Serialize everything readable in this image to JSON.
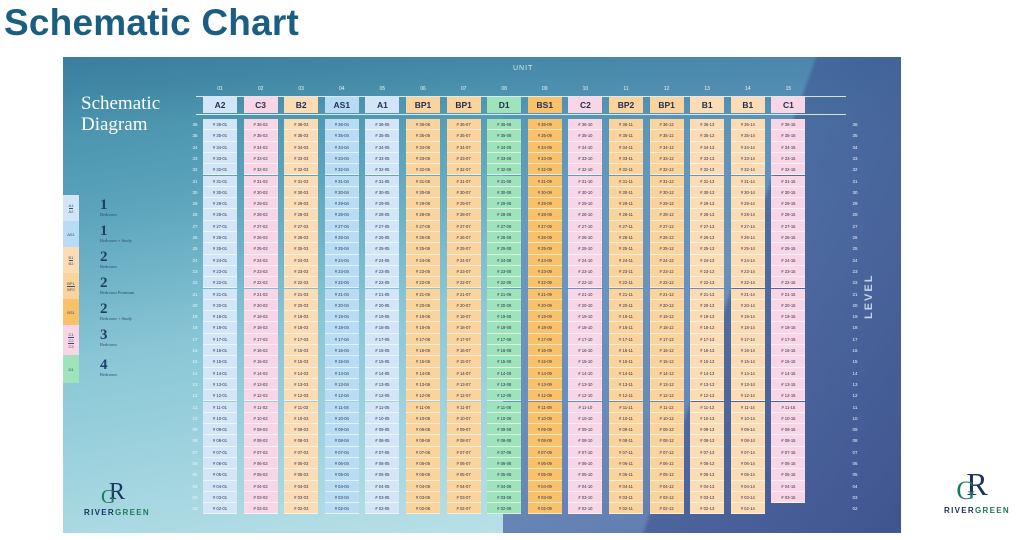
{
  "page": {
    "title": "Schematic Chart"
  },
  "diagram": {
    "title_line1": "Schematic",
    "title_line2": "Diagram",
    "unit_label": "UNIT",
    "level_label": "LEVEL",
    "colors": {
      "A": "#d3e6f7",
      "AS": "#b9dcf5",
      "B": "#fcdcb5",
      "BP": "#fbd39c",
      "BS": "#f9c26a",
      "C": "#f8d6e6",
      "D": "#9fe3bb"
    },
    "columns": [
      {
        "num": "01",
        "type": "A2",
        "color": "#d3e6f7"
      },
      {
        "num": "02",
        "type": "C3",
        "color": "#f8d6e6"
      },
      {
        "num": "03",
        "type": "B2",
        "color": "#fcdcb5"
      },
      {
        "num": "04",
        "type": "AS1",
        "color": "#b9dcf5"
      },
      {
        "num": "05",
        "type": "A1",
        "color": "#d3e6f7"
      },
      {
        "num": "06",
        "type": "BP1",
        "color": "#fbd39c"
      },
      {
        "num": "07",
        "type": "BP1",
        "color": "#fbd39c"
      },
      {
        "num": "08",
        "type": "D1",
        "color": "#9fe3bb"
      },
      {
        "num": "09",
        "type": "BS1",
        "color": "#f9c26a"
      },
      {
        "num": "10",
        "type": "C2",
        "color": "#f8d6e6"
      },
      {
        "num": "11",
        "type": "BP2",
        "color": "#fbd39c"
      },
      {
        "num": "12",
        "type": "BP1",
        "color": "#fbd39c"
      },
      {
        "num": "13",
        "type": "B1",
        "color": "#fcdcb5"
      },
      {
        "num": "14",
        "type": "B1",
        "color": "#fcdcb5"
      },
      {
        "num": "15",
        "type": "C1",
        "color": "#f8d6e6",
        "min_level": 3
      }
    ],
    "levels": [
      "36",
      "35",
      "34",
      "33",
      "32",
      "31",
      "30",
      "29",
      "28",
      "27",
      "26",
      "25",
      "24",
      "23",
      "22",
      "21",
      "20",
      "19",
      "18",
      "17",
      "16",
      "15",
      "14",
      "13",
      "12",
      "11",
      "10",
      "09",
      "08",
      "07",
      "06",
      "05",
      "04",
      "03",
      "02"
    ],
    "unit_prefix": "# ",
    "legend": [
      {
        "swatch": [
          "A1",
          "A2"
        ],
        "color": "#d3e6f7",
        "num": "1",
        "text": "Bedroom"
      },
      {
        "swatch": [
          "AS1"
        ],
        "color": "#b9dcf5",
        "num": "1",
        "text": "Bedroom + Study"
      },
      {
        "swatch": [
          "B1",
          "B2"
        ],
        "color": "#fcdcb5",
        "num": "2",
        "text": "Bedroom"
      },
      {
        "swatch": [
          "BP1",
          "BP2"
        ],
        "color": "#fbd39c",
        "num": "2",
        "text": "Bedroom Premium"
      },
      {
        "swatch": [
          "BS1"
        ],
        "color": "#f9c26a",
        "num": "2",
        "text": "Bedroom + Study"
      },
      {
        "swatch": [
          "C1",
          "C2",
          "C3"
        ],
        "color": "#f8d6e6",
        "num": "3",
        "text": "Bedroom"
      },
      {
        "swatch": [
          "D1"
        ],
        "color": "#9fe3bb",
        "num": "4",
        "text": "Bedroom"
      }
    ]
  },
  "branding": {
    "logo_mark_r": "R",
    "logo_mark_g": "G",
    "word_part1": "RIVER",
    "word_part2": "GREEN"
  }
}
